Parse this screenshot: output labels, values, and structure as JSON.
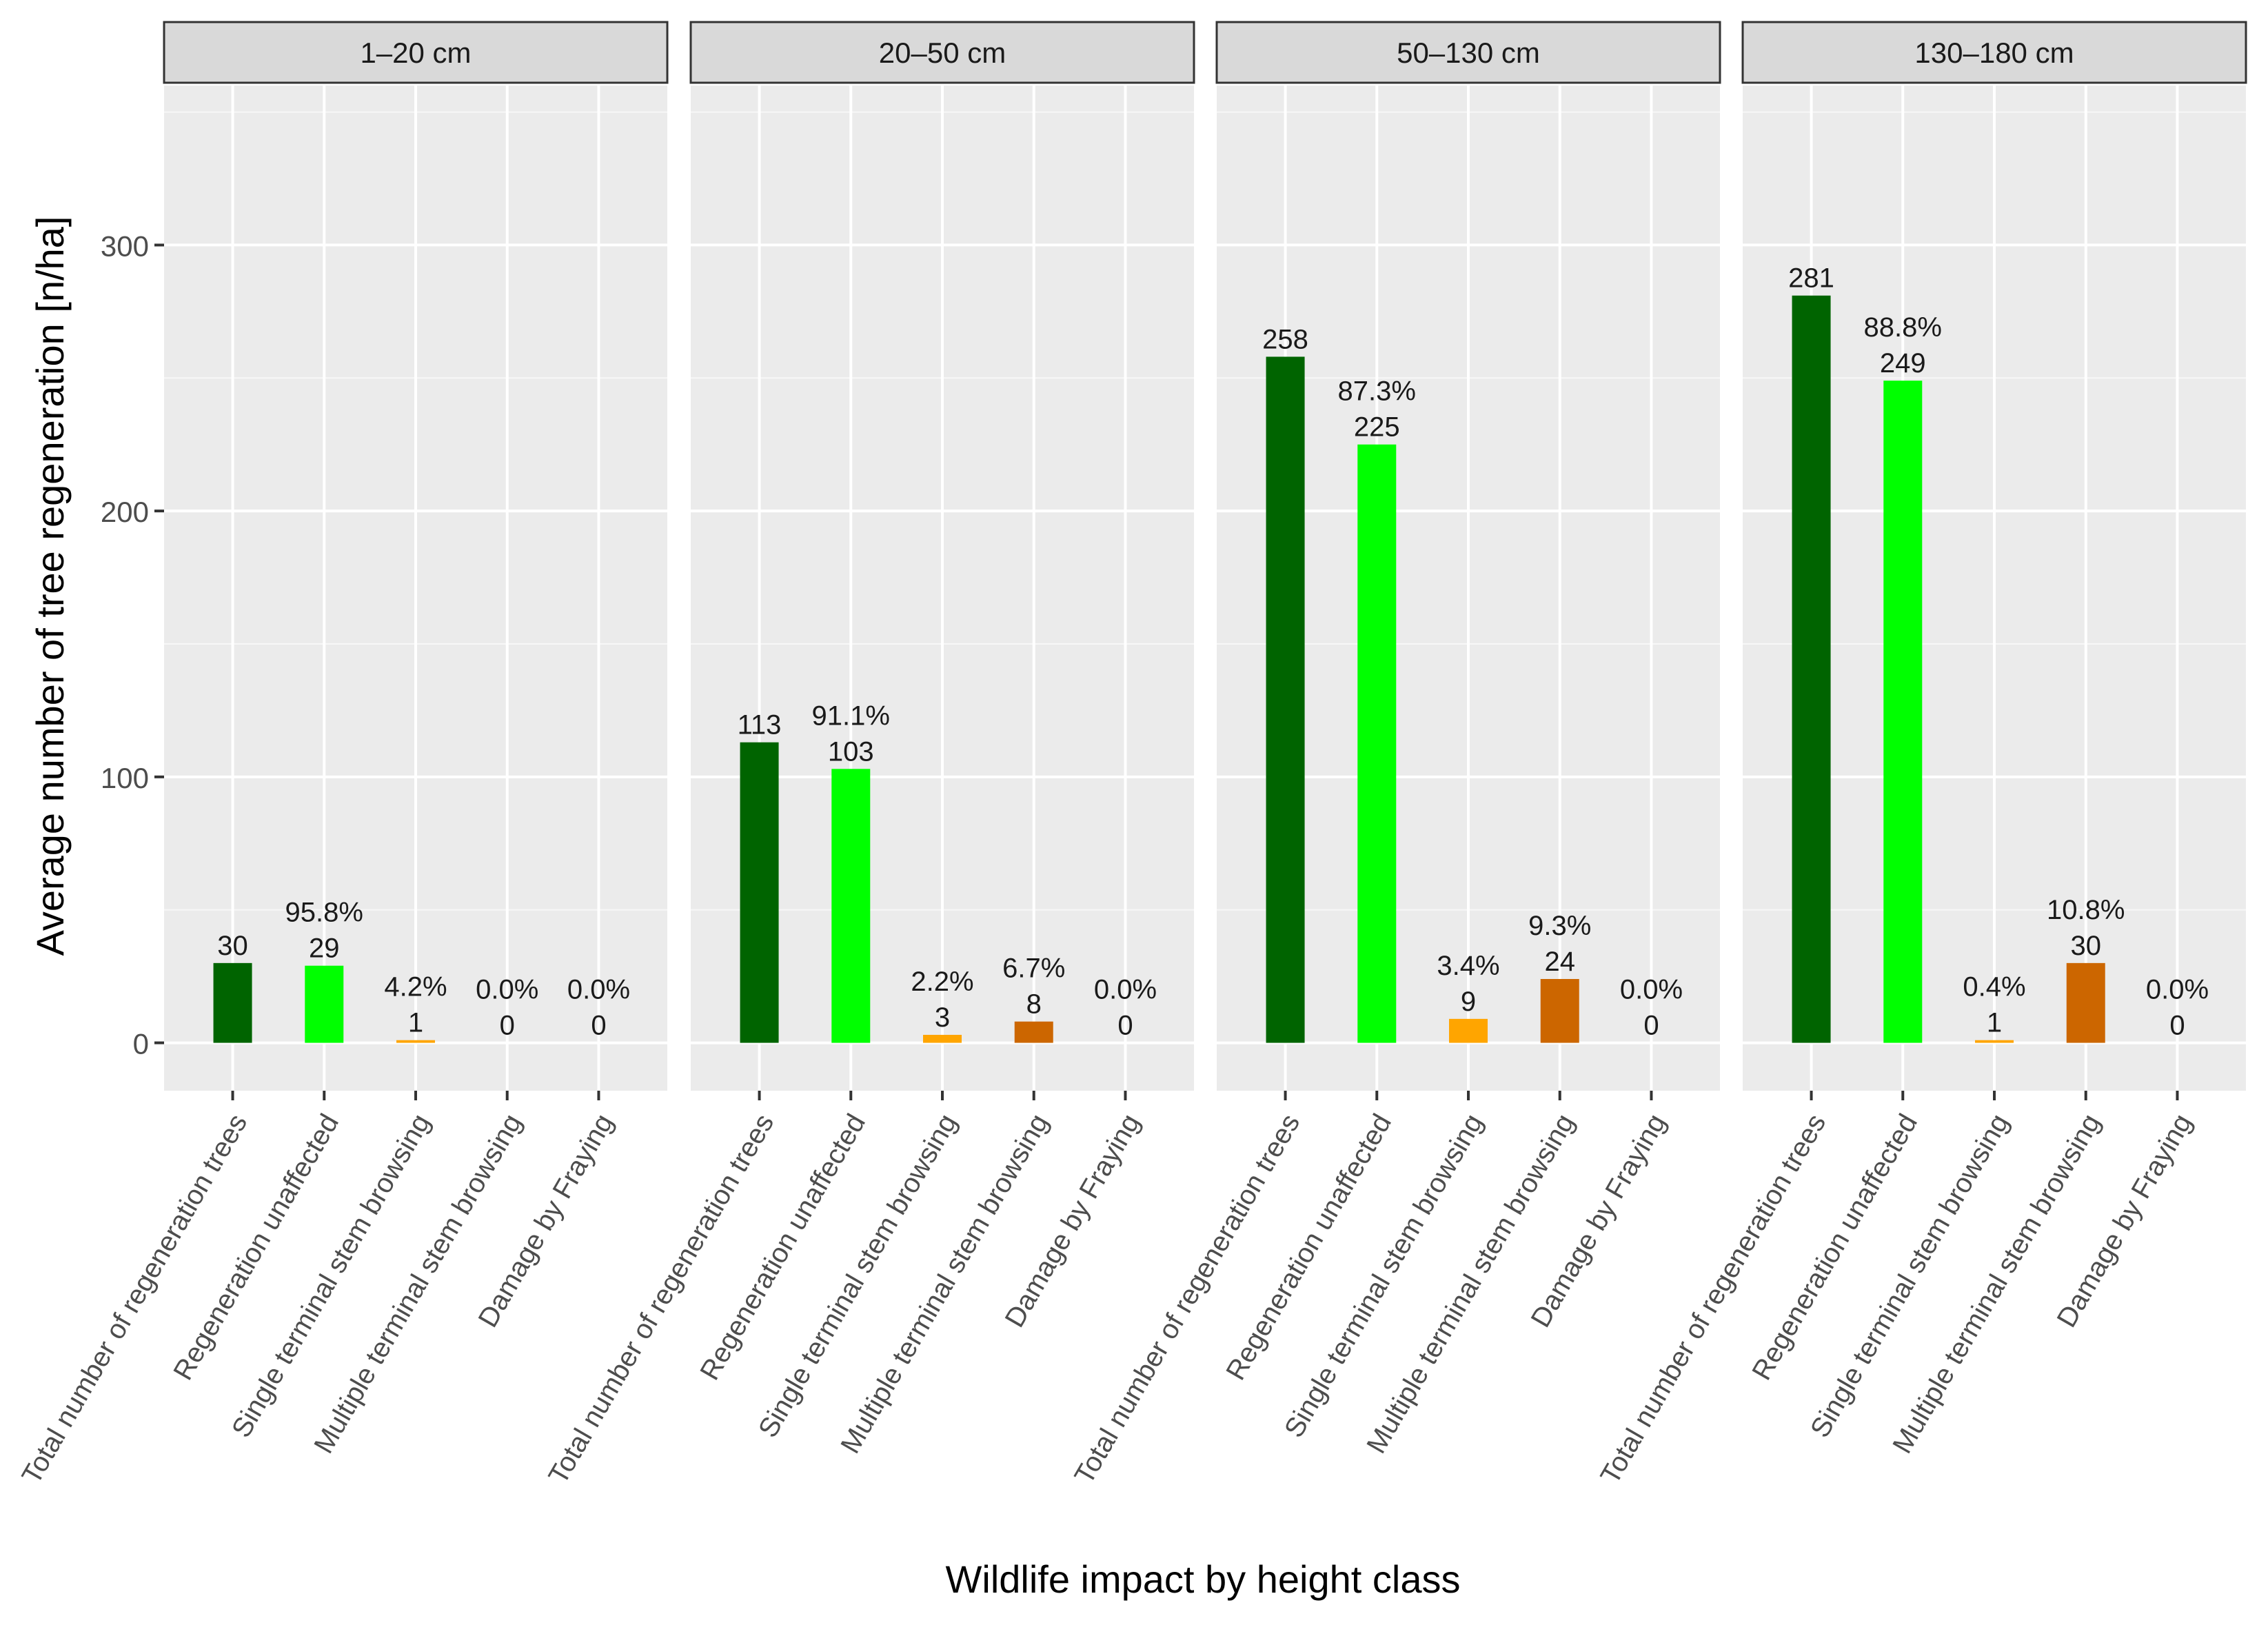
{
  "chart_data": {
    "type": "bar",
    "xlabel": "Wildlife impact by height class",
    "ylabel": "Average number of tree regeneration [n/ha]",
    "ylim": [
      -18,
      360
    ],
    "yticks": [
      0,
      100,
      200,
      300
    ],
    "grid": true,
    "categories": [
      "Total number of regeneration trees",
      "Regeneration unaffected",
      "Single terminal stem browsing",
      "Multiple terminal stem browsing",
      "Damage by Fraying"
    ],
    "colors": [
      "#006400",
      "#00ff00",
      "#ffa500",
      "#cc6600",
      "#b22222"
    ],
    "panels": [
      {
        "title": "1–20 cm",
        "values": [
          30,
          29,
          1,
          0,
          0
        ],
        "value_labels": [
          "30",
          "29",
          "1",
          "0",
          "0"
        ],
        "percent_labels": [
          "",
          "95.8%",
          "4.2%",
          "0.0%",
          "0.0%"
        ]
      },
      {
        "title": "20–50 cm",
        "values": [
          113,
          103,
          3,
          8,
          0
        ],
        "value_labels": [
          "113",
          "103",
          "3",
          "8",
          "0"
        ],
        "percent_labels": [
          "",
          "91.1%",
          "2.2%",
          "6.7%",
          "0.0%"
        ]
      },
      {
        "title": "50–130 cm",
        "values": [
          258,
          225,
          9,
          24,
          0
        ],
        "value_labels": [
          "258",
          "225",
          "9",
          "24",
          "0"
        ],
        "percent_labels": [
          "",
          "87.3%",
          "3.4%",
          "9.3%",
          "0.0%"
        ]
      },
      {
        "title": "130–180 cm",
        "values": [
          281,
          249,
          1,
          30,
          0
        ],
        "value_labels": [
          "281",
          "249",
          "1",
          "30",
          "0"
        ],
        "percent_labels": [
          "",
          "88.8%",
          "0.4%",
          "10.8%",
          "0.0%"
        ]
      }
    ]
  }
}
